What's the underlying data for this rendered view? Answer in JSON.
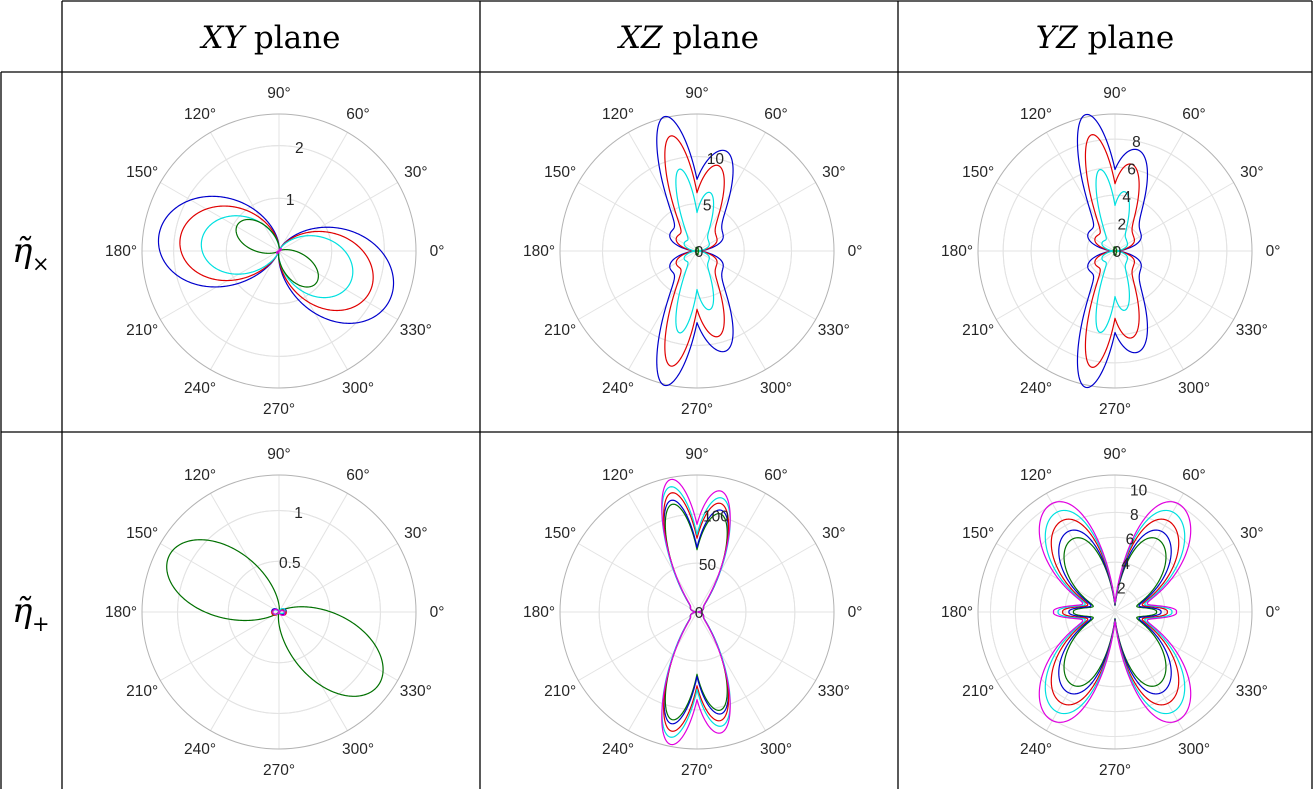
{
  "headers": {
    "col_xy": {
      "var": "XY",
      "word": "plane"
    },
    "col_xz": {
      "var": "XZ",
      "word": "plane"
    },
    "col_yz": {
      "var": "YZ",
      "word": "plane"
    }
  },
  "rows": {
    "row1": {
      "symbol": "η̃",
      "subscript": "×"
    },
    "row2": {
      "symbol": "η̃",
      "subscript": "+"
    }
  },
  "series_colors": {
    "blue": "#0000cc",
    "red": "#e00000",
    "cyan": "#00e0e0",
    "green": "#007000",
    "magenta": "#e000e0"
  },
  "chart_data": [
    {
      "type": "polar",
      "panel": "cross-XY",
      "angle_ticks": [
        "0°",
        "30°",
        "60°",
        "90°",
        "120°",
        "150°",
        "180°",
        "210°",
        "240°",
        "270°",
        "300°",
        "330°"
      ],
      "rmax": 2.6,
      "r_ticks": [
        {
          "value": 1,
          "label": "1"
        },
        {
          "value": 2,
          "label": "2"
        }
      ],
      "series": [
        {
          "color": "blue",
          "model": "lobe",
          "params": {
            "A": 2.25,
            "dir": 165,
            "n": 2,
            "skew": 0.3,
            "bulge": 0.08
          }
        },
        {
          "color": "red",
          "model": "lobe",
          "params": {
            "A": 1.85,
            "dir": 165,
            "n": 2,
            "skew": 0.3,
            "bulge": 0.08
          }
        },
        {
          "color": "cyan",
          "model": "lobe",
          "params": {
            "A": 1.45,
            "dir": 165,
            "n": 2,
            "skew": 0.3,
            "bulge": 0.08
          }
        },
        {
          "color": "green",
          "model": "lobe",
          "params": {
            "A": 0.92,
            "dir": 143,
            "n": 4,
            "skew": 0.32,
            "bulge": 0.0
          }
        },
        {
          "color": "magenta",
          "model": "lobe",
          "params": {
            "A": 0.06,
            "dir": 45,
            "n": 4,
            "skew": 0.0,
            "bulge": 0.0
          }
        }
      ]
    },
    {
      "type": "polar",
      "panel": "cross-XZ",
      "angle_ticks": [
        "0°",
        "30°",
        "60°",
        "90°",
        "120°",
        "150°",
        "180°",
        "210°",
        "240°",
        "270°",
        "300°",
        "330°"
      ],
      "rmax": 14.5,
      "r_ticks": [
        {
          "value": 0,
          "label": "0"
        },
        {
          "value": 5,
          "label": "5"
        },
        {
          "value": 10,
          "label": "10"
        }
      ],
      "series": [
        {
          "color": "blue",
          "model": "fan",
          "params": {
            "A": 12.8,
            "c": 76,
            "w": 11,
            "b": 3.4,
            "rip": 0.16
          }
        },
        {
          "color": "red",
          "model": "fan",
          "params": {
            "A": 10.9,
            "c": 77,
            "w": 10,
            "b": 2.6,
            "rip": 0.16
          }
        },
        {
          "color": "cyan",
          "model": "fan",
          "params": {
            "A": 7.6,
            "c": 78,
            "w": 9,
            "b": 1.6,
            "rip": 0.18
          }
        },
        {
          "color": "green",
          "model": "fan",
          "params": {
            "A": 0.4,
            "c": 78,
            "w": 9,
            "b": 0.2,
            "rip": 0.0
          }
        }
      ]
    },
    {
      "type": "polar",
      "panel": "cross-YZ",
      "angle_ticks": [
        "0°",
        "30°",
        "60°",
        "90°",
        "120°",
        "150°",
        "180°",
        "210°",
        "240°",
        "270°",
        "300°",
        "330°"
      ],
      "rmax": 9.8,
      "r_ticks": [
        {
          "value": 0,
          "label": "0"
        },
        {
          "value": 2,
          "label": "2"
        },
        {
          "value": 4,
          "label": "4"
        },
        {
          "value": 6,
          "label": "6"
        },
        {
          "value": 8,
          "label": "8"
        }
      ],
      "series": [
        {
          "color": "blue",
          "model": "fan",
          "params": {
            "A": 8.7,
            "c": 78,
            "w": 11,
            "b": 2.3,
            "rip": 0.16
          }
        },
        {
          "color": "red",
          "model": "fan",
          "params": {
            "A": 7.4,
            "c": 79,
            "w": 10,
            "b": 1.7,
            "rip": 0.16
          }
        },
        {
          "color": "cyan",
          "model": "fan",
          "params": {
            "A": 5.1,
            "c": 80,
            "w": 9,
            "b": 1.1,
            "rip": 0.18
          }
        },
        {
          "color": "green",
          "model": "fan",
          "params": {
            "A": 0.3,
            "c": 80,
            "w": 9,
            "b": 0.15,
            "rip": 0.0
          }
        }
      ]
    },
    {
      "type": "polar",
      "panel": "plus-XY",
      "angle_ticks": [
        "0°",
        "30°",
        "60°",
        "90°",
        "120°",
        "150°",
        "180°",
        "210°",
        "240°",
        "270°",
        "300°",
        "330°"
      ],
      "rmax": 1.35,
      "r_ticks": [
        {
          "value": 0.5,
          "label": "0.5"
        },
        {
          "value": 1,
          "label": "1"
        }
      ],
      "series": [
        {
          "color": "green",
          "model": "lobe",
          "params": {
            "A": 1.2,
            "dir": 148,
            "n": 4,
            "skew": 0.33,
            "bulge": 0.0
          }
        },
        {
          "color": "blue",
          "model": "lobe",
          "params": {
            "A": 0.07,
            "dir": 0,
            "n": 2,
            "skew": 0.3,
            "bulge": 0.3
          }
        },
        {
          "color": "red",
          "model": "lobe",
          "params": {
            "A": 0.07,
            "dir": 180,
            "n": 2,
            "skew": 0.3,
            "bulge": 0.3
          }
        },
        {
          "color": "cyan",
          "model": "lobe",
          "params": {
            "A": 0.06,
            "dir": 10,
            "n": 2,
            "skew": 0.3,
            "bulge": 0.3
          }
        },
        {
          "color": "magenta",
          "model": "lobe",
          "params": {
            "A": 0.06,
            "dir": 170,
            "n": 2,
            "skew": 0.3,
            "bulge": 0.3
          }
        }
      ]
    },
    {
      "type": "polar",
      "panel": "plus-XZ",
      "angle_ticks": [
        "0°",
        "30°",
        "60°",
        "90°",
        "120°",
        "150°",
        "180°",
        "210°",
        "240°",
        "270°",
        "300°",
        "330°"
      ],
      "rmax": 140,
      "r_ticks": [
        {
          "value": 0,
          "label": "0"
        },
        {
          "value": 50,
          "label": "50"
        },
        {
          "value": 100,
          "label": "100"
        }
      ],
      "series": [
        {
          "color": "green",
          "model": "fan",
          "params": {
            "A": 108,
            "c": 77,
            "w": 12,
            "b": 8,
            "rip": 0.05
          }
        },
        {
          "color": "blue",
          "model": "fan",
          "params": {
            "A": 112,
            "c": 77,
            "w": 12,
            "b": 8,
            "rip": 0.05
          }
        },
        {
          "color": "red",
          "model": "fan",
          "params": {
            "A": 119,
            "c": 78,
            "w": 12,
            "b": 8,
            "rip": 0.05
          }
        },
        {
          "color": "cyan",
          "model": "fan",
          "params": {
            "A": 125,
            "c": 78,
            "w": 12,
            "b": 8,
            "rip": 0.05
          }
        },
        {
          "color": "magenta",
          "model": "fan",
          "params": {
            "A": 132,
            "c": 79,
            "w": 12,
            "b": 8,
            "rip": 0.05
          }
        }
      ]
    },
    {
      "type": "polar",
      "panel": "plus-YZ",
      "angle_ticks": [
        "0°",
        "30°",
        "60°",
        "90°",
        "120°",
        "150°",
        "180°",
        "210°",
        "240°",
        "270°",
        "300°",
        "330°"
      ],
      "rmax": 11,
      "r_ticks": [
        {
          "value": 2,
          "label": "2"
        },
        {
          "value": 4,
          "label": "4"
        },
        {
          "value": 6,
          "label": "6"
        },
        {
          "value": 8,
          "label": "8"
        },
        {
          "value": 10,
          "label": "10"
        }
      ],
      "series": [
        {
          "color": "green",
          "model": "butterfly",
          "params": {
            "A": 6.8,
            "w": 4.6
          }
        },
        {
          "color": "blue",
          "model": "butterfly",
          "params": {
            "A": 7.5,
            "w": 5.1
          }
        },
        {
          "color": "red",
          "model": "butterfly",
          "params": {
            "A": 8.5,
            "w": 5.8
          }
        },
        {
          "color": "cyan",
          "model": "butterfly",
          "params": {
            "A": 9.3,
            "w": 6.3
          }
        },
        {
          "color": "magenta",
          "model": "butterfly",
          "params": {
            "A": 10.1,
            "w": 6.8
          }
        }
      ]
    }
  ]
}
